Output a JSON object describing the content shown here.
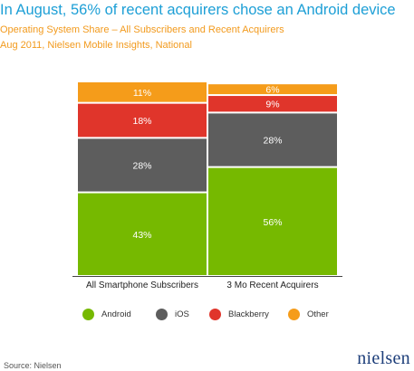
{
  "title": "In August, 56% of recent acquirers chose an Android device",
  "subtitle_1": "Operating System Share – All Subscribers and Recent Acquirers",
  "subtitle_2": "Aug 2011, Nielsen Mobile Insights, National",
  "source": "Source: Nielsen",
  "logo": "nielsen",
  "colors": {
    "Android": "#76b900",
    "iOS": "#5d5d5d",
    "Blackberry": "#e0352b",
    "Other": "#f59c1a"
  },
  "chart_data": {
    "type": "bar",
    "stacked": true,
    "categories": [
      "All Smartphone Subscribers",
      "3 Mo Recent Acquirers"
    ],
    "series": [
      {
        "name": "Android",
        "values": [
          43,
          56
        ],
        "labels": [
          "43%",
          "56%"
        ]
      },
      {
        "name": "iOS",
        "values": [
          28,
          28
        ],
        "labels": [
          "28%",
          "28%"
        ]
      },
      {
        "name": "Blackberry",
        "values": [
          18,
          9
        ],
        "labels": [
          "18%",
          "9%"
        ]
      },
      {
        "name": "Other",
        "values": [
          11,
          6
        ],
        "labels": [
          "11%",
          "6%"
        ]
      }
    ],
    "ylim": [
      0,
      100
    ],
    "legend_position": "bottom",
    "grid": false
  }
}
